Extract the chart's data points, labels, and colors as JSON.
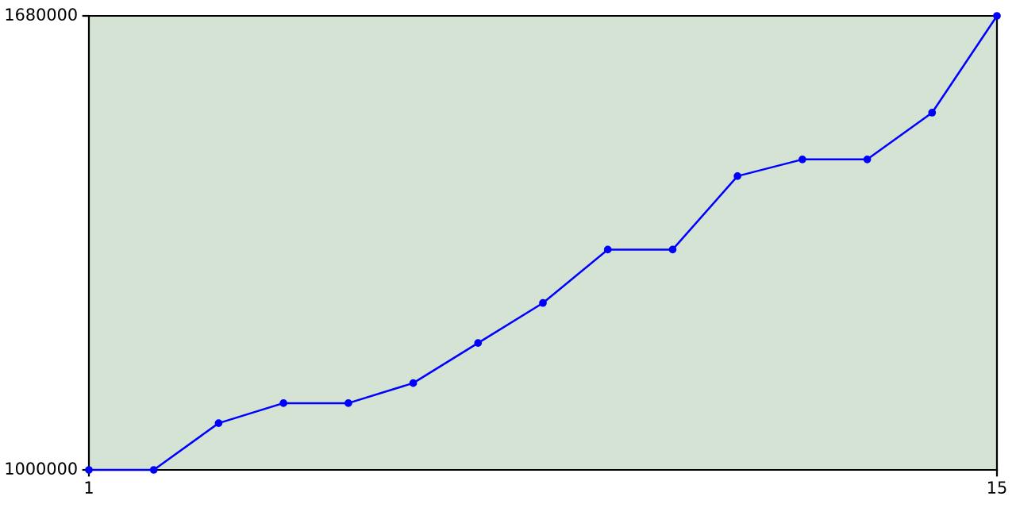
{
  "chart_data": {
    "type": "line",
    "x": [
      1,
      2,
      3,
      4,
      5,
      6,
      7,
      8,
      9,
      10,
      11,
      12,
      13,
      14,
      15
    ],
    "series": [
      {
        "color": "#0000ff",
        "values": [
          1000000,
          1000000,
          1070000,
          1100000,
          1100000,
          1130000,
          1190000,
          1250000,
          1330000,
          1330000,
          1440000,
          1465000,
          1465000,
          1535000,
          1680000
        ]
      }
    ],
    "xlim": [
      1,
      15
    ],
    "xticks": [
      1,
      15
    ],
    "ylim": [
      1000000,
      1680000
    ],
    "yticks": [
      1000000,
      1680000
    ],
    "grid": false,
    "legend": false,
    "marker": "circle",
    "line_style": "solid"
  }
}
